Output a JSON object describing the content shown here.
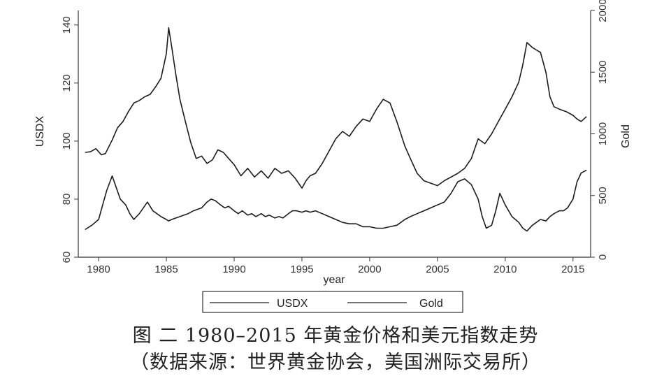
{
  "chart_data": {
    "type": "line",
    "xlabel": "year",
    "ylabel_left": "USDX",
    "ylabel_right": "Gold",
    "xlim": [
      1978.5,
      2016.3
    ],
    "ylim_left": [
      60,
      145
    ],
    "ylim_right": [
      0,
      2000
    ],
    "x_ticks": [
      1980,
      1985,
      1990,
      1995,
      2000,
      2005,
      2010,
      2015
    ],
    "y_left_ticks": [
      60,
      80,
      100,
      120,
      140
    ],
    "y_right_ticks": [
      0,
      500,
      1000,
      1500,
      2000
    ],
    "grid": false,
    "legend_position": "bottom",
    "series": [
      {
        "name": "USDX",
        "axis": "left",
        "x": [
          1979.0,
          1979.5,
          1980.0,
          1980.3,
          1980.6,
          1981.0,
          1981.3,
          1981.6,
          1982.0,
          1982.3,
          1982.6,
          1983.0,
          1983.3,
          1983.6,
          1984.0,
          1984.3,
          1984.6,
          1985.0,
          1985.15,
          1985.4,
          1985.7,
          1986.0,
          1986.3,
          1986.6,
          1987.0,
          1987.3,
          1987.6,
          1988.0,
          1988.3,
          1988.6,
          1989.0,
          1989.3,
          1989.6,
          1990.0,
          1990.3,
          1990.6,
          1991.0,
          1991.3,
          1991.6,
          1992.0,
          1992.3,
          1992.6,
          1993.0,
          1993.3,
          1993.6,
          1994.0,
          1994.3,
          1994.6,
          1995.0,
          1995.3,
          1995.6,
          1996.0,
          1996.5,
          1997.0,
          1997.5,
          1998.0,
          1998.5,
          1999.0,
          1999.5,
          2000.0,
          2000.5,
          2001.0,
          2001.5,
          2002.0,
          2002.3,
          2002.6,
          2003.0,
          2003.5,
          2004.0,
          2004.5,
          2005.0,
          2005.5,
          2006.0,
          2006.5,
          2007.0,
          2007.5,
          2008.0,
          2008.3,
          2008.6,
          2009.0,
          2009.3,
          2009.6,
          2010.0,
          2010.5,
          2011.0,
          2011.3,
          2011.6,
          2012.0,
          2012.3,
          2012.6,
          2013.0,
          2013.3,
          2013.6,
          2014.0,
          2014.3,
          2014.6,
          2015.0,
          2015.3,
          2015.6,
          2016.0
        ],
        "y": [
          69.5,
          71,
          73,
          78,
          83,
          88,
          84,
          80,
          78,
          75,
          73,
          75,
          77,
          79,
          76,
          75,
          74,
          73,
          72.5,
          73,
          73.5,
          74,
          74.5,
          75,
          76,
          76.5,
          77,
          79,
          80,
          79.5,
          78,
          77,
          77.5,
          76,
          75,
          76,
          74.5,
          75,
          74,
          75,
          74,
          74.5,
          73.5,
          74,
          73.5,
          75,
          76,
          76,
          75.5,
          76,
          75.5,
          76,
          75,
          74,
          73,
          72,
          71.5,
          71.5,
          70.5,
          70.5,
          70,
          70,
          70.5,
          71,
          72,
          73,
          74,
          75,
          76,
          77,
          78,
          79,
          82,
          86,
          87,
          85,
          80,
          74,
          70,
          71,
          76,
          82,
          78,
          74,
          72,
          70,
          69,
          71,
          72,
          73,
          72.5,
          74,
          75,
          76,
          76,
          77,
          80,
          86,
          89,
          90
        ]
      },
      {
        "name": "Gold",
        "axis": "right",
        "x": [
          1979.0,
          1979.4,
          1979.8,
          1980.2,
          1980.5,
          1981.0,
          1981.4,
          1981.8,
          1982.2,
          1982.6,
          1983.0,
          1983.4,
          1983.8,
          1984.2,
          1984.6,
          1985.0,
          1985.17,
          1985.4,
          1985.7,
          1986.0,
          1986.4,
          1986.8,
          1987.2,
          1987.6,
          1988.0,
          1988.4,
          1988.8,
          1989.2,
          1989.6,
          1990.0,
          1990.5,
          1991.0,
          1991.5,
          1992.0,
          1992.5,
          1993.0,
          1993.5,
          1994.0,
          1994.5,
          1995.0,
          1995.3,
          1995.6,
          1996.0,
          1996.5,
          1997.0,
          1997.5,
          1998.0,
          1998.5,
          1999.0,
          1999.5,
          2000.0,
          2000.5,
          2001.0,
          2001.5,
          2002.0,
          2002.3,
          2002.6,
          2003.0,
          2003.5,
          2004.0,
          2004.5,
          2005.0,
          2005.5,
          2006.0,
          2006.5,
          2007.0,
          2007.5,
          2008.0,
          2008.5,
          2009.0,
          2009.5,
          2010.0,
          2010.5,
          2011.0,
          2011.3,
          2011.6,
          2012.0,
          2012.3,
          2012.6,
          2013.0,
          2013.3,
          2013.6,
          2014.0,
          2014.5,
          2015.0,
          2015.3,
          2015.6,
          2016.0
        ],
        "y": [
          850,
          855,
          880,
          830,
          840,
          950,
          1050,
          1100,
          1180,
          1250,
          1270,
          1300,
          1320,
          1380,
          1450,
          1650,
          1860,
          1700,
          1480,
          1280,
          1100,
          930,
          800,
          820,
          760,
          790,
          870,
          850,
          800,
          750,
          660,
          720,
          650,
          700,
          640,
          720,
          680,
          700,
          640,
          560,
          620,
          660,
          680,
          760,
          860,
          960,
          1020,
          980,
          1060,
          1120,
          1100,
          1200,
          1280,
          1250,
          1100,
          1000,
          900,
          800,
          680,
          620,
          600,
          580,
          620,
          650,
          680,
          720,
          800,
          960,
          920,
          1000,
          1100,
          1200,
          1300,
          1420,
          1560,
          1740,
          1700,
          1680,
          1660,
          1500,
          1300,
          1220,
          1200,
          1180,
          1150,
          1120,
          1100,
          1140
        ]
      }
    ]
  },
  "caption": {
    "line1": "图 二 1980–2015 年黄金价格和美元指数走势",
    "line2": "（数据来源：世界黄金协会，美国洲际交易所）"
  }
}
